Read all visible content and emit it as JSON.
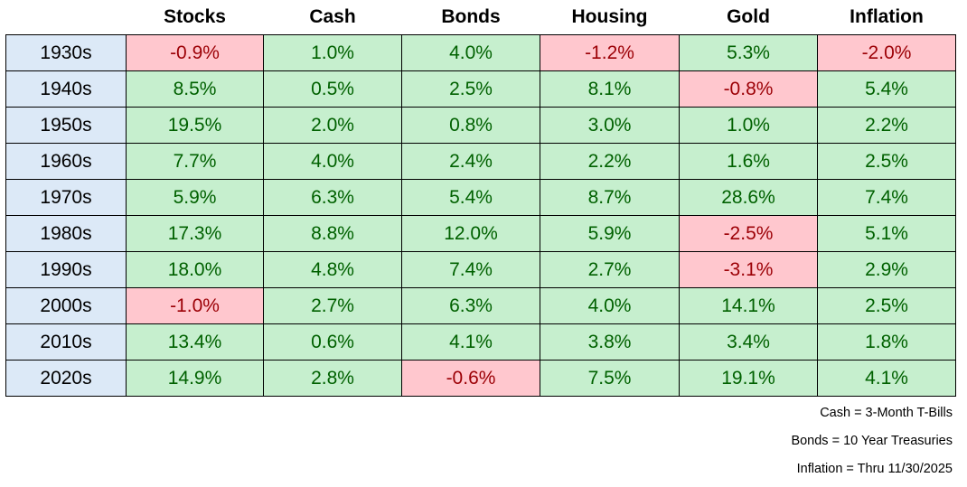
{
  "table": {
    "columns": [
      "Stocks",
      "Cash",
      "Bonds",
      "Housing",
      "Gold",
      "Inflation"
    ],
    "rows": [
      [
        "1930s",
        "-0.9%",
        "1.0%",
        "4.0%",
        "-1.2%",
        "5.3%",
        "-2.0%"
      ],
      [
        "1940s",
        "8.5%",
        "0.5%",
        "2.5%",
        "8.1%",
        "-0.8%",
        "5.4%"
      ],
      [
        "1950s",
        "19.5%",
        "2.0%",
        "0.8%",
        "3.0%",
        "1.0%",
        "2.2%"
      ],
      [
        "1960s",
        "7.7%",
        "4.0%",
        "2.4%",
        "2.2%",
        "1.6%",
        "2.5%"
      ],
      [
        "1970s",
        "5.9%",
        "6.3%",
        "5.4%",
        "8.7%",
        "28.6%",
        "7.4%"
      ],
      [
        "1980s",
        "17.3%",
        "8.8%",
        "12.0%",
        "5.9%",
        "-2.5%",
        "5.1%"
      ],
      [
        "1990s",
        "18.0%",
        "4.8%",
        "7.4%",
        "2.7%",
        "-3.1%",
        "2.9%"
      ],
      [
        "2000s",
        "-1.0%",
        "2.7%",
        "6.3%",
        "4.0%",
        "14.1%",
        "2.5%"
      ],
      [
        "2010s",
        "13.4%",
        "0.6%",
        "4.1%",
        "3.8%",
        "3.4%",
        "1.8%"
      ],
      [
        "2020s",
        "14.9%",
        "2.8%",
        "-0.6%",
        "7.5%",
        "19.1%",
        "4.1%"
      ]
    ]
  },
  "notes": [
    "Cash = 3-Month T-Bills",
    "Bonds = 10 Year Treasuries",
    "Inflation = Thru 11/30/2025"
  ]
}
